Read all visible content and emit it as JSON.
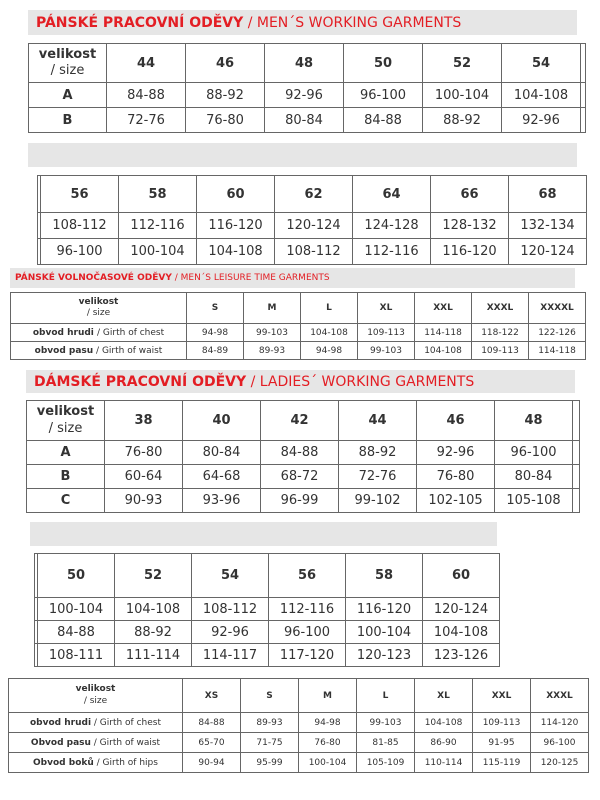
{
  "men_working": {
    "title_cz": "PÁNSKÉ PRACOVNÍ ODĚVY",
    "title_en": "/ MEN´S WORKING GARMENTS",
    "size_label_cz": "velikost",
    "size_label_en": "/ size",
    "part1": {
      "sizes": [
        "44",
        "46",
        "48",
        "50",
        "52",
        "54"
      ],
      "rows": [
        {
          "label": "A",
          "values": [
            "84-88",
            "88-92",
            "92-96",
            "96-100",
            "100-104",
            "104-108"
          ]
        },
        {
          "label": "B",
          "values": [
            "72-76",
            "76-80",
            "80-84",
            "84-88",
            "88-92",
            "92-96"
          ]
        }
      ]
    },
    "part2": {
      "sizes": [
        "56",
        "58",
        "60",
        "62",
        "64",
        "66",
        "68"
      ],
      "rows": [
        {
          "values": [
            "108-112",
            "112-116",
            "116-120",
            "120-124",
            "124-128",
            "128-132",
            "132-134"
          ]
        },
        {
          "values": [
            "96-100",
            "100-104",
            "104-108",
            "108-112",
            "112-116",
            "116-120",
            "120-124"
          ]
        }
      ]
    }
  },
  "men_leisure": {
    "title_cz": "PÁNSKÉ VOLNOČASOVÉ ODĚVY",
    "title_en": "/ MEN´S LEISURE TIME GARMENTS",
    "size_label_cz": "velikost",
    "size_label_en": "/ size",
    "sizes": [
      "S",
      "M",
      "L",
      "XL",
      "XXL",
      "XXXL",
      "XXXXL"
    ],
    "rows": [
      {
        "label_cz": "obvod hrudi ",
        "label_en": " / Girth of chest",
        "values": [
          "94-98",
          "99-103",
          "104-108",
          "109-113",
          "114-118",
          "118-122",
          "122-126"
        ]
      },
      {
        "label_cz": "obvod pasu",
        "label_en": " / Girth of waist",
        "values": [
          "84-89",
          "89-93",
          "94-98",
          "99-103",
          "104-108",
          "109-113",
          "114-118"
        ]
      }
    ]
  },
  "ladies_working": {
    "title_cz": "DÁMSKÉ PRACOVNÍ ODĚVY",
    "title_en": "/ LADIES´ WORKING GARMENTS",
    "size_label_cz": "velikost",
    "size_label_en": "/ size",
    "part1": {
      "sizes": [
        "38",
        "40",
        "42",
        "44",
        "46",
        "48"
      ],
      "rows": [
        {
          "label": "A",
          "values": [
            "76-80",
            "80-84",
            "84-88",
            "88-92",
            "92-96",
            "96-100"
          ]
        },
        {
          "label": "B",
          "values": [
            "60-64",
            "64-68",
            "68-72",
            "72-76",
            "76-80",
            "80-84"
          ]
        },
        {
          "label": "C",
          "values": [
            "90-93",
            "93-96",
            "96-99",
            "99-102",
            "102-105",
            "105-108"
          ]
        }
      ]
    },
    "part2": {
      "sizes": [
        "50",
        "52",
        "54",
        "56",
        "58",
        "60"
      ],
      "rows": [
        {
          "values": [
            "100-104",
            "104-108",
            "108-112",
            "112-116",
            "116-120",
            "120-124"
          ]
        },
        {
          "values": [
            "84-88",
            "88-92",
            "92-96",
            "96-100",
            "100-104",
            "104-108"
          ]
        },
        {
          "values": [
            "108-111",
            "111-114",
            "114-117",
            "117-120",
            "120-123",
            "123-126"
          ]
        }
      ]
    }
  },
  "ladies_leisure": {
    "size_label_cz": "velikost",
    "size_label_en": "/ size",
    "sizes": [
      "XS",
      "S",
      "M",
      "L",
      "XL",
      "XXL",
      "XXXL"
    ],
    "rows": [
      {
        "label_cz": "obvod hrudi",
        "label_en": " / Girth of chest",
        "values": [
          "84-88",
          "89-93",
          "94-98",
          "99-103",
          "104-108",
          "109-113",
          "114-120"
        ]
      },
      {
        "label_cz": "Obvod pasu",
        "label_en": " / Girth of waist",
        "values": [
          "65-70",
          "71-75",
          "76-80",
          "81-85",
          "86-90",
          "91-95",
          "96-100"
        ]
      },
      {
        "label_cz": "Obvod boků",
        "label_en": " / Girth of hips",
        "values": [
          "90-94",
          "95-99",
          "100-104",
          "105-109",
          "110-114",
          "115-119",
          "120-125"
        ]
      }
    ]
  },
  "colors": {
    "accent": "#e31e24",
    "header_bg": "#e6e6e6",
    "border": "#666666"
  }
}
